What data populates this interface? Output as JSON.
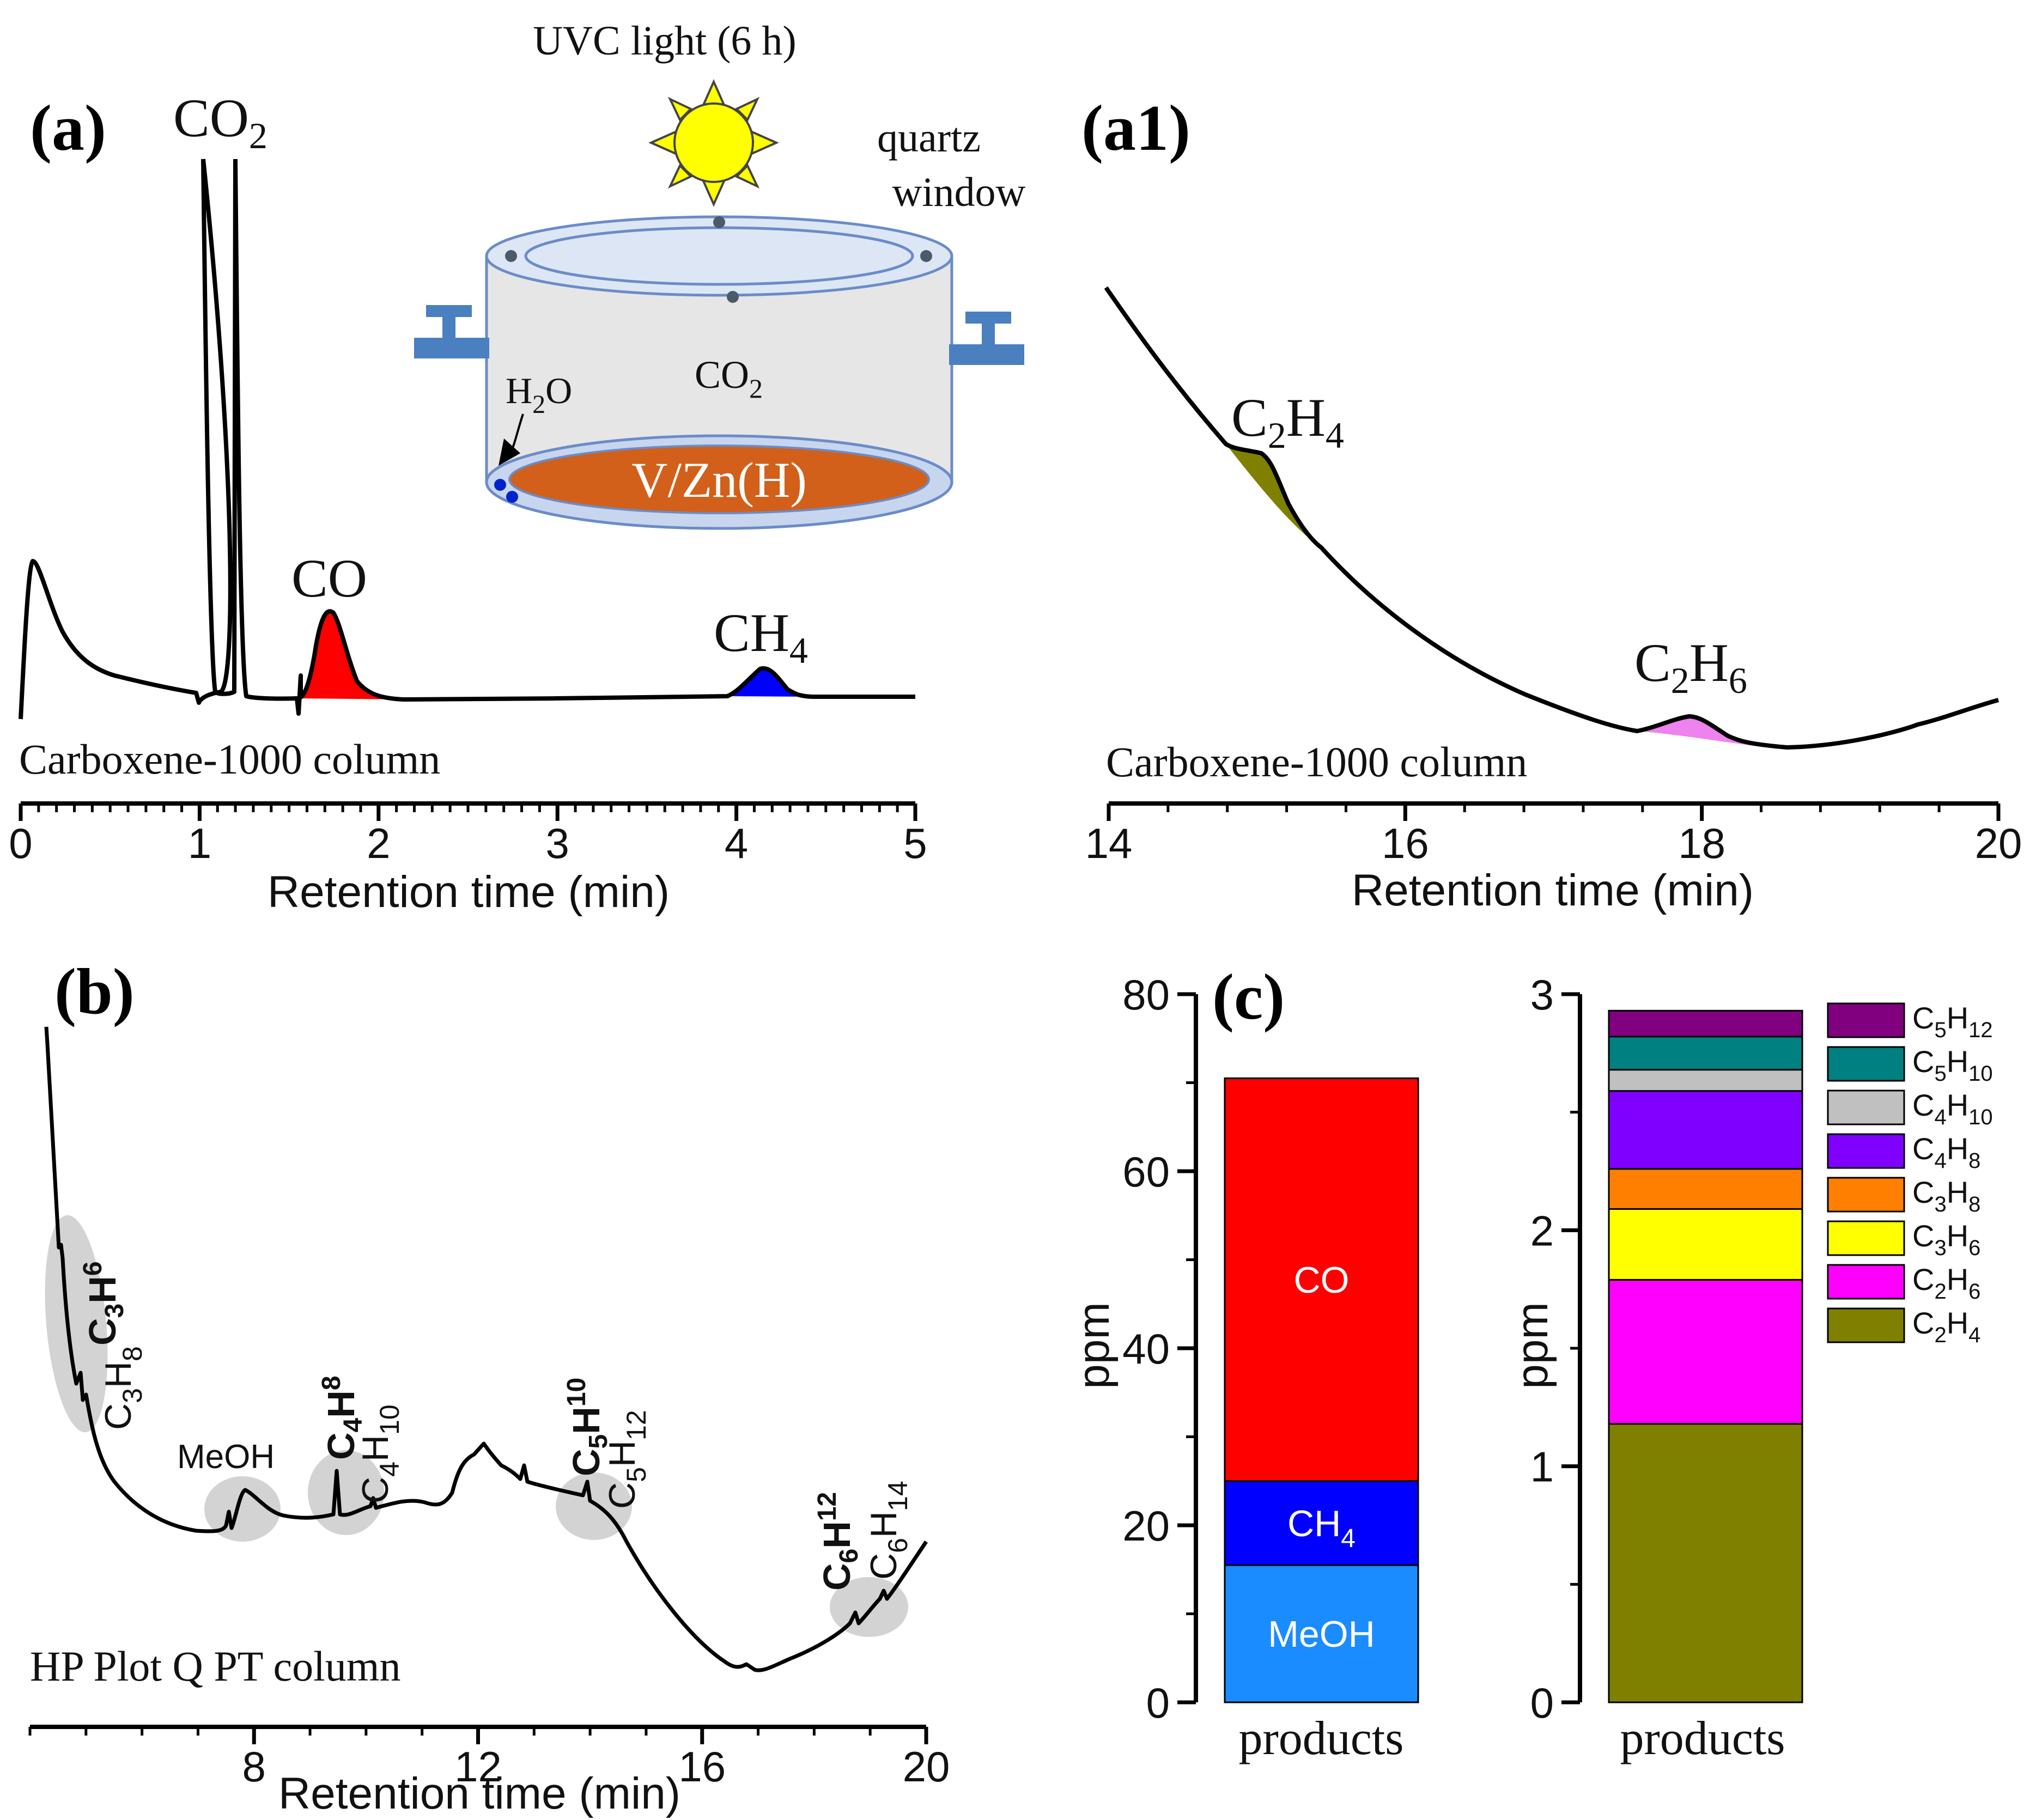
{
  "panels": {
    "a": {
      "label": "(a)",
      "column": "Carboxene-1000 column",
      "xlabel": "Retention time (min)",
      "inset": {
        "light": "UVC light (6 h)",
        "window_line1": "quartz",
        "window_line2": "window",
        "gas": "CO",
        "gas_sub": "2",
        "water_pre": "H",
        "water_sub": "2",
        "water_post": "O",
        "catalyst": "V/Zn(H)"
      },
      "peak_co2": {
        "base": "CO",
        "sub": "2"
      },
      "peak_co": {
        "base": "CO"
      },
      "peak_ch4": {
        "base": "CH",
        "sub": "4"
      }
    },
    "a1": {
      "label": "(a1)",
      "column": "Carboxene-1000 column",
      "xlabel": "Retention time (min)",
      "peak_c2h4": {
        "b1": "C",
        "s1": "2",
        "b2": "H",
        "s2": "4"
      },
      "peak_c2h6": {
        "b1": "C",
        "s1": "2",
        "b2": "H",
        "s2": "6"
      }
    },
    "b": {
      "label": "(b)",
      "column": "HP Plot Q PT column",
      "xlabel": "Retention time (min)",
      "meoh": "MeOH",
      "bold_peaks": [
        {
          "b1": "C",
          "s1": "3",
          "b2": "H",
          "s2": "6"
        },
        {
          "b1": "C",
          "s1": "4",
          "b2": "H",
          "s2": "8"
        },
        {
          "b1": "C",
          "s1": "5",
          "b2": "H",
          "s2": "10"
        },
        {
          "b1": "C",
          "s1": "6",
          "b2": "H",
          "s2": "12"
        }
      ],
      "normal_peaks": [
        {
          "b1": "C",
          "s1": "3",
          "b2": "H",
          "s2": "8"
        },
        {
          "b1": "C",
          "s1": "4",
          "b2": "H",
          "s2": "10"
        },
        {
          "b1": "C",
          "s1": "5",
          "b2": "H",
          "s2": "12"
        },
        {
          "b1": "C",
          "s1": "6",
          "b2": "H",
          "s2": "14"
        }
      ]
    },
    "c": {
      "label": "(c)",
      "left_xlabel": "products",
      "right_xlabel": "products",
      "left_ylabel": "ppm",
      "right_ylabel": "ppm"
    }
  },
  "chart_data": [
    {
      "id": "a",
      "type": "line",
      "title": "(a)",
      "xlabel": "Retention time (min)",
      "xlim": [
        0,
        5
      ],
      "xticks": [
        "0",
        "1",
        "2",
        "3",
        "4",
        "5"
      ],
      "peaks": [
        {
          "name": "CO2",
          "rt_min": 1.1
        },
        {
          "name": "CO",
          "rt_min": 1.72,
          "color": "#ff0000"
        },
        {
          "name": "CH4",
          "rt_min": 4.17,
          "color": "#0000ff"
        }
      ]
    },
    {
      "id": "a1",
      "type": "line",
      "title": "(a1)",
      "xlabel": "Retention time (min)",
      "xlim": [
        14,
        20
      ],
      "xticks": [
        "14",
        "16",
        "18",
        "20"
      ],
      "peaks": [
        {
          "name": "C2H4",
          "rt_min": 15.1,
          "color": "#808000"
        },
        {
          "name": "C2H6",
          "rt_min": 18.0,
          "color": "#ee82ee"
        }
      ]
    },
    {
      "id": "b",
      "type": "line",
      "title": "(b)",
      "xlabel": "Retention time (min)",
      "xlim": [
        4,
        20
      ],
      "xticks": [
        "8",
        "12",
        "16",
        "20"
      ],
      "peaks": [
        {
          "name": "C3H6 / C3H8",
          "rt_min": 5.0
        },
        {
          "name": "MeOH",
          "rt_min": 8.4
        },
        {
          "name": "C4H8 / C4H10",
          "rt_min": 10.0
        },
        {
          "name": "C5H10 / C5H12",
          "rt_min": 14.3
        },
        {
          "name": "C6H12 / C6H14",
          "rt_min": 19.0
        }
      ]
    },
    {
      "id": "c-left",
      "type": "bar",
      "stacked": true,
      "categories": [
        "products"
      ],
      "ylabel": "ppm",
      "ylim": [
        0,
        80
      ],
      "yticks": [
        "0",
        "20",
        "40",
        "60",
        "80"
      ],
      "series": [
        {
          "name": "MeOH",
          "label": "MeOH",
          "value": 15.5,
          "color": "#1a8cff"
        },
        {
          "name": "CH4",
          "label_base": "CH",
          "label_sub": "4",
          "value": 9.5,
          "color": "#0000ff"
        },
        {
          "name": "CO",
          "label": "CO",
          "value": 45.5,
          "color": "#ff0000"
        }
      ]
    },
    {
      "id": "c-right",
      "type": "bar",
      "stacked": true,
      "categories": [
        "products"
      ],
      "ylabel": "ppm",
      "ylim": [
        0,
        3
      ],
      "yticks": [
        "0",
        "1",
        "2",
        "3"
      ],
      "legend_position": "right",
      "series": [
        {
          "name": "C2H4",
          "b1": "C",
          "s1": "2",
          "b2": "H",
          "s2": "4",
          "value": 1.18,
          "color": "#808000"
        },
        {
          "name": "C2H6",
          "b1": "C",
          "s1": "2",
          "b2": "H",
          "s2": "6",
          "value": 0.61,
          "color": "#ff00ff"
        },
        {
          "name": "C3H6",
          "b1": "C",
          "s1": "3",
          "b2": "H",
          "s2": "6",
          "value": 0.3,
          "color": "#ffff00"
        },
        {
          "name": "C3H8",
          "b1": "C",
          "s1": "3",
          "b2": "H",
          "s2": "8",
          "value": 0.17,
          "color": "#ff8000"
        },
        {
          "name": "C4H8",
          "b1": "C",
          "s1": "4",
          "b2": "H",
          "s2": "8",
          "value": 0.33,
          "color": "#8000ff"
        },
        {
          "name": "C4H10",
          "b1": "C",
          "s1": "4",
          "b2": "H",
          "s2": "10",
          "value": 0.09,
          "color": "#c0c0c0"
        },
        {
          "name": "C5H10",
          "b1": "C",
          "s1": "5",
          "b2": "H",
          "s2": "10",
          "value": 0.14,
          "color": "#008080"
        },
        {
          "name": "C5H12",
          "b1": "C",
          "s1": "5",
          "b2": "H",
          "s2": "12",
          "value": 0.11,
          "color": "#800080"
        }
      ]
    }
  ]
}
